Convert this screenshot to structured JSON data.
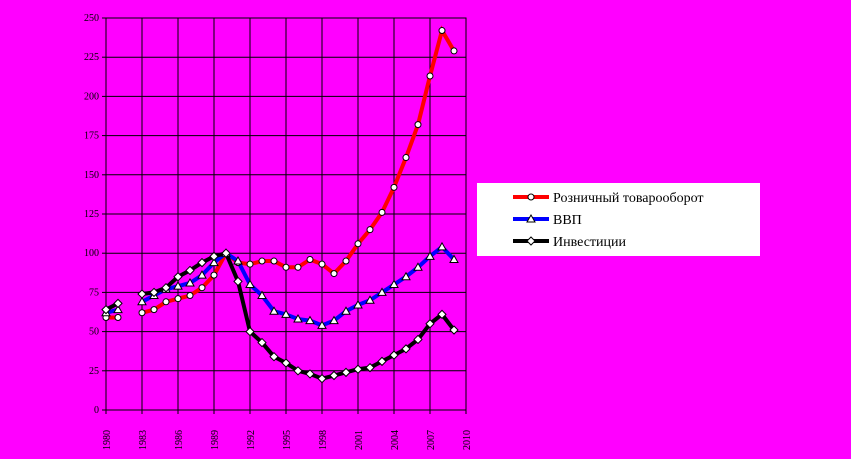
{
  "chart_data": {
    "type": "line",
    "x": [
      1980,
      1981,
      1982,
      1983,
      1984,
      1985,
      1986,
      1987,
      1988,
      1989,
      1990,
      1991,
      1992,
      1993,
      1994,
      1995,
      1996,
      1997,
      1998,
      1999,
      2000,
      2001,
      2002,
      2003,
      2004,
      2005,
      2006,
      2007,
      2008,
      2009
    ],
    "series": [
      {
        "name": "Розничный товарооборот",
        "color": "#ff0000",
        "marker": "circle",
        "values": [
          59,
          59,
          null,
          62,
          64,
          69,
          71,
          73,
          78,
          86,
          100,
          94,
          93,
          95,
          95,
          91,
          91,
          96,
          93,
          87,
          95,
          106,
          115,
          126,
          142,
          161,
          182,
          213,
          242,
          229
        ]
      },
      {
        "name": "ВВП",
        "color": "#0000ff",
        "marker": "triangle",
        "values": [
          62,
          64,
          null,
          69,
          73,
          77,
          79,
          81,
          86,
          94,
          100,
          95,
          80,
          73,
          63,
          61,
          58,
          57,
          54,
          57,
          63,
          67,
          70,
          75,
          80,
          85,
          91,
          98,
          104,
          96
        ]
      },
      {
        "name": "Инвестиции",
        "color": "#000000",
        "marker": "diamond",
        "values": [
          64,
          68,
          null,
          74,
          75,
          78,
          85,
          89,
          94,
          98,
          100,
          82,
          50,
          43,
          34,
          30,
          25,
          23,
          20,
          22,
          24,
          26,
          27,
          31,
          35,
          39,
          45,
          55,
          61,
          51
        ]
      }
    ],
    "xlim": [
      1980,
      2010
    ],
    "xticks": [
      1980,
      1983,
      1986,
      1989,
      1992,
      1995,
      1998,
      2001,
      2004,
      2007,
      2010
    ],
    "ylim": [
      0,
      250
    ],
    "yticks": [
      0,
      25,
      50,
      75,
      100,
      125,
      150,
      175,
      200,
      225,
      250
    ],
    "grid": true,
    "legend": "right"
  }
}
